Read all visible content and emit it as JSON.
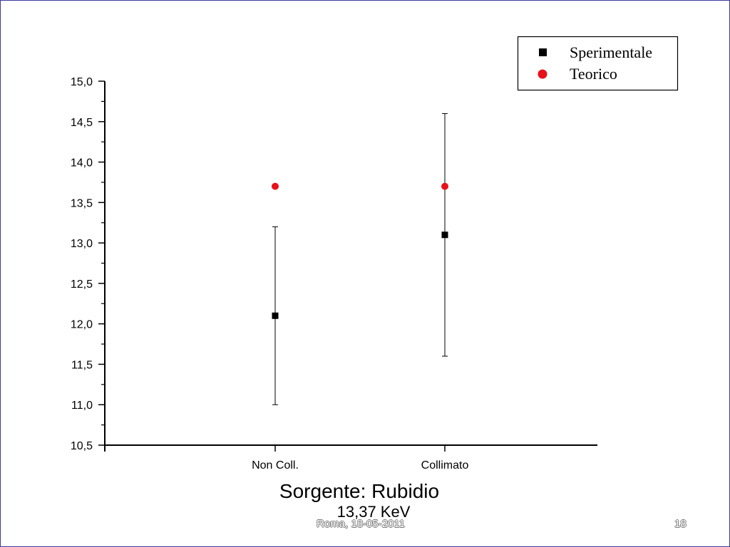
{
  "slide": {
    "subtitle_main": "Sorgente: Rubidio",
    "subtitle_sub": "13,37 KeV",
    "footer_date": "Roma, 18-05-2011",
    "footer_page": "18"
  },
  "chart_data": {
    "type": "scatter",
    "categories": [
      "Non Coll.",
      "Collimato"
    ],
    "ylim": [
      10.5,
      15.0
    ],
    "yticks": [
      "10,5",
      "11,0",
      "11,5",
      "12,0",
      "12,5",
      "13,0",
      "13,5",
      "14,0",
      "14,5",
      "15,0"
    ],
    "grid": false,
    "legend_position": "top-right",
    "series": [
      {
        "name": "Sperimentale",
        "marker": "square",
        "color": "#000000",
        "values": [
          12.1,
          13.1
        ],
        "error_low": [
          11.0,
          11.6
        ],
        "error_high": [
          13.2,
          14.6
        ]
      },
      {
        "name": "Teorico",
        "marker": "circle",
        "color": "#e8111a",
        "values": [
          13.7,
          13.7
        ]
      }
    ]
  }
}
